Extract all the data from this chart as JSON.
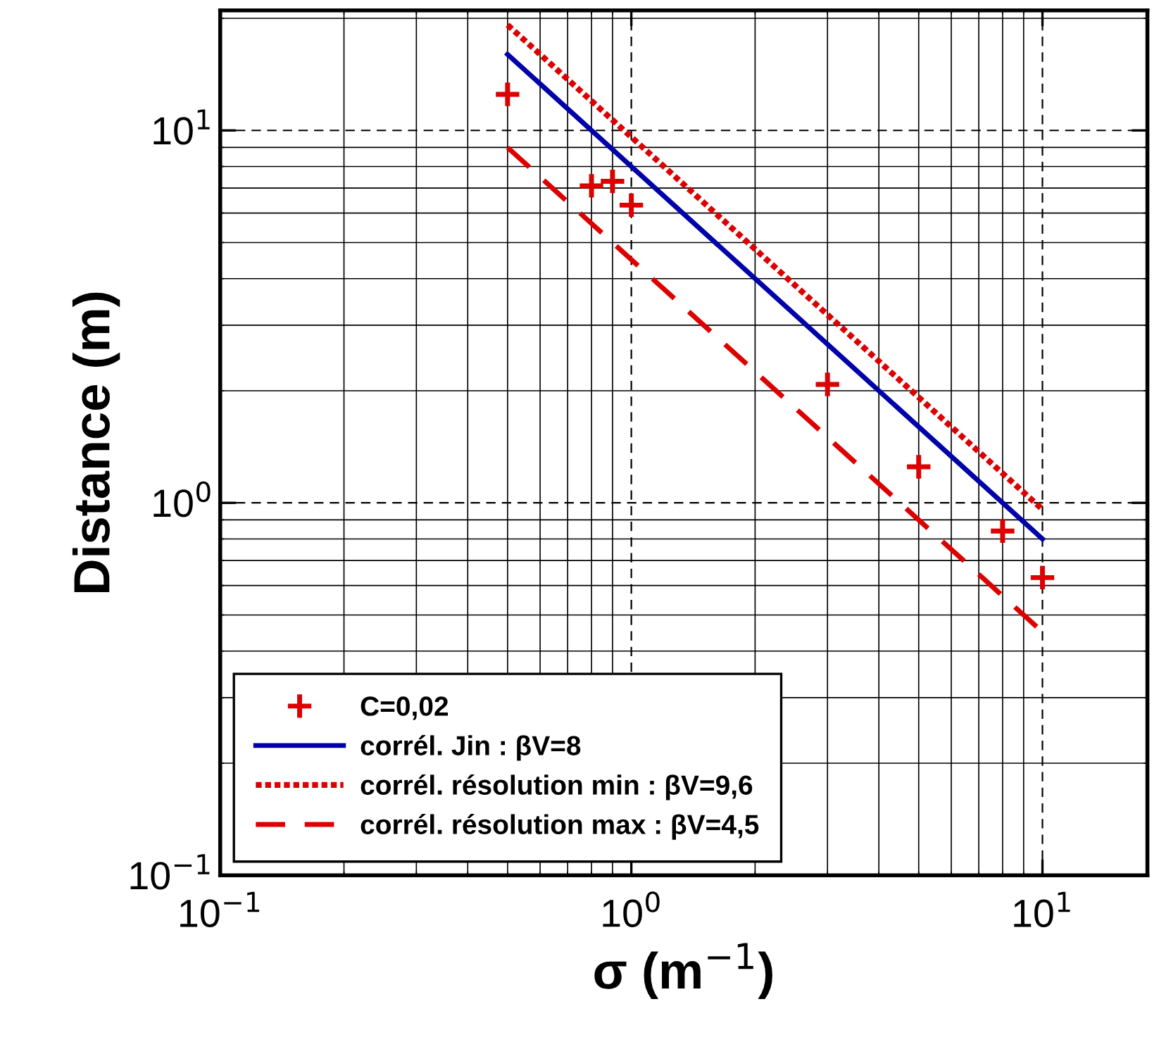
{
  "chart_data": {
    "type": "line",
    "xlabel": "σ (m$^{−1}$)",
    "ylabel": "Distance (m)",
    "log": "xy",
    "xlim": [
      0.1,
      18
    ],
    "ylim": [
      0.1,
      21
    ],
    "xticks": [
      {
        "value": 0.1,
        "label": "10$^{−1}$"
      },
      {
        "value": 1,
        "label": "10$^{0}$"
      },
      {
        "value": 10,
        "label": "10$^{1}$"
      }
    ],
    "yticks": [
      {
        "value": 0.1,
        "label": "10$^{−1}$"
      },
      {
        "value": 1,
        "label": "10$^{0}$"
      },
      {
        "value": 10,
        "label": "10$^{1}$"
      }
    ],
    "grid": true,
    "legend": "bottom left",
    "series": [
      {
        "name": "C=0,02",
        "type": "scatter",
        "marker": "cross",
        "color": "#dd0000",
        "x": [
          0.5,
          0.8,
          0.9,
          1.0,
          3,
          5,
          8,
          10
        ],
        "values": [
          12.5,
          7.1,
          7.3,
          6.3,
          2.08,
          1.25,
          0.84,
          0.63
        ]
      },
      {
        "name": "corrél. Jin : βV=8",
        "line_style": "solid",
        "color": "#0000aa",
        "x": [
          0.5,
          10
        ],
        "values": [
          16,
          0.8
        ]
      },
      {
        "name": "corrél. résolution min : βV=9,6",
        "line_style": "dotted",
        "color": "#dd0000",
        "x": [
          0.5,
          10
        ],
        "values": [
          19.2,
          0.96
        ]
      },
      {
        "name": "corrél. résolution max : βV=4,5",
        "line_style": "dashed",
        "color": "#dd0000",
        "x": [
          0.5,
          10
        ],
        "values": [
          9,
          0.45
        ]
      }
    ]
  }
}
